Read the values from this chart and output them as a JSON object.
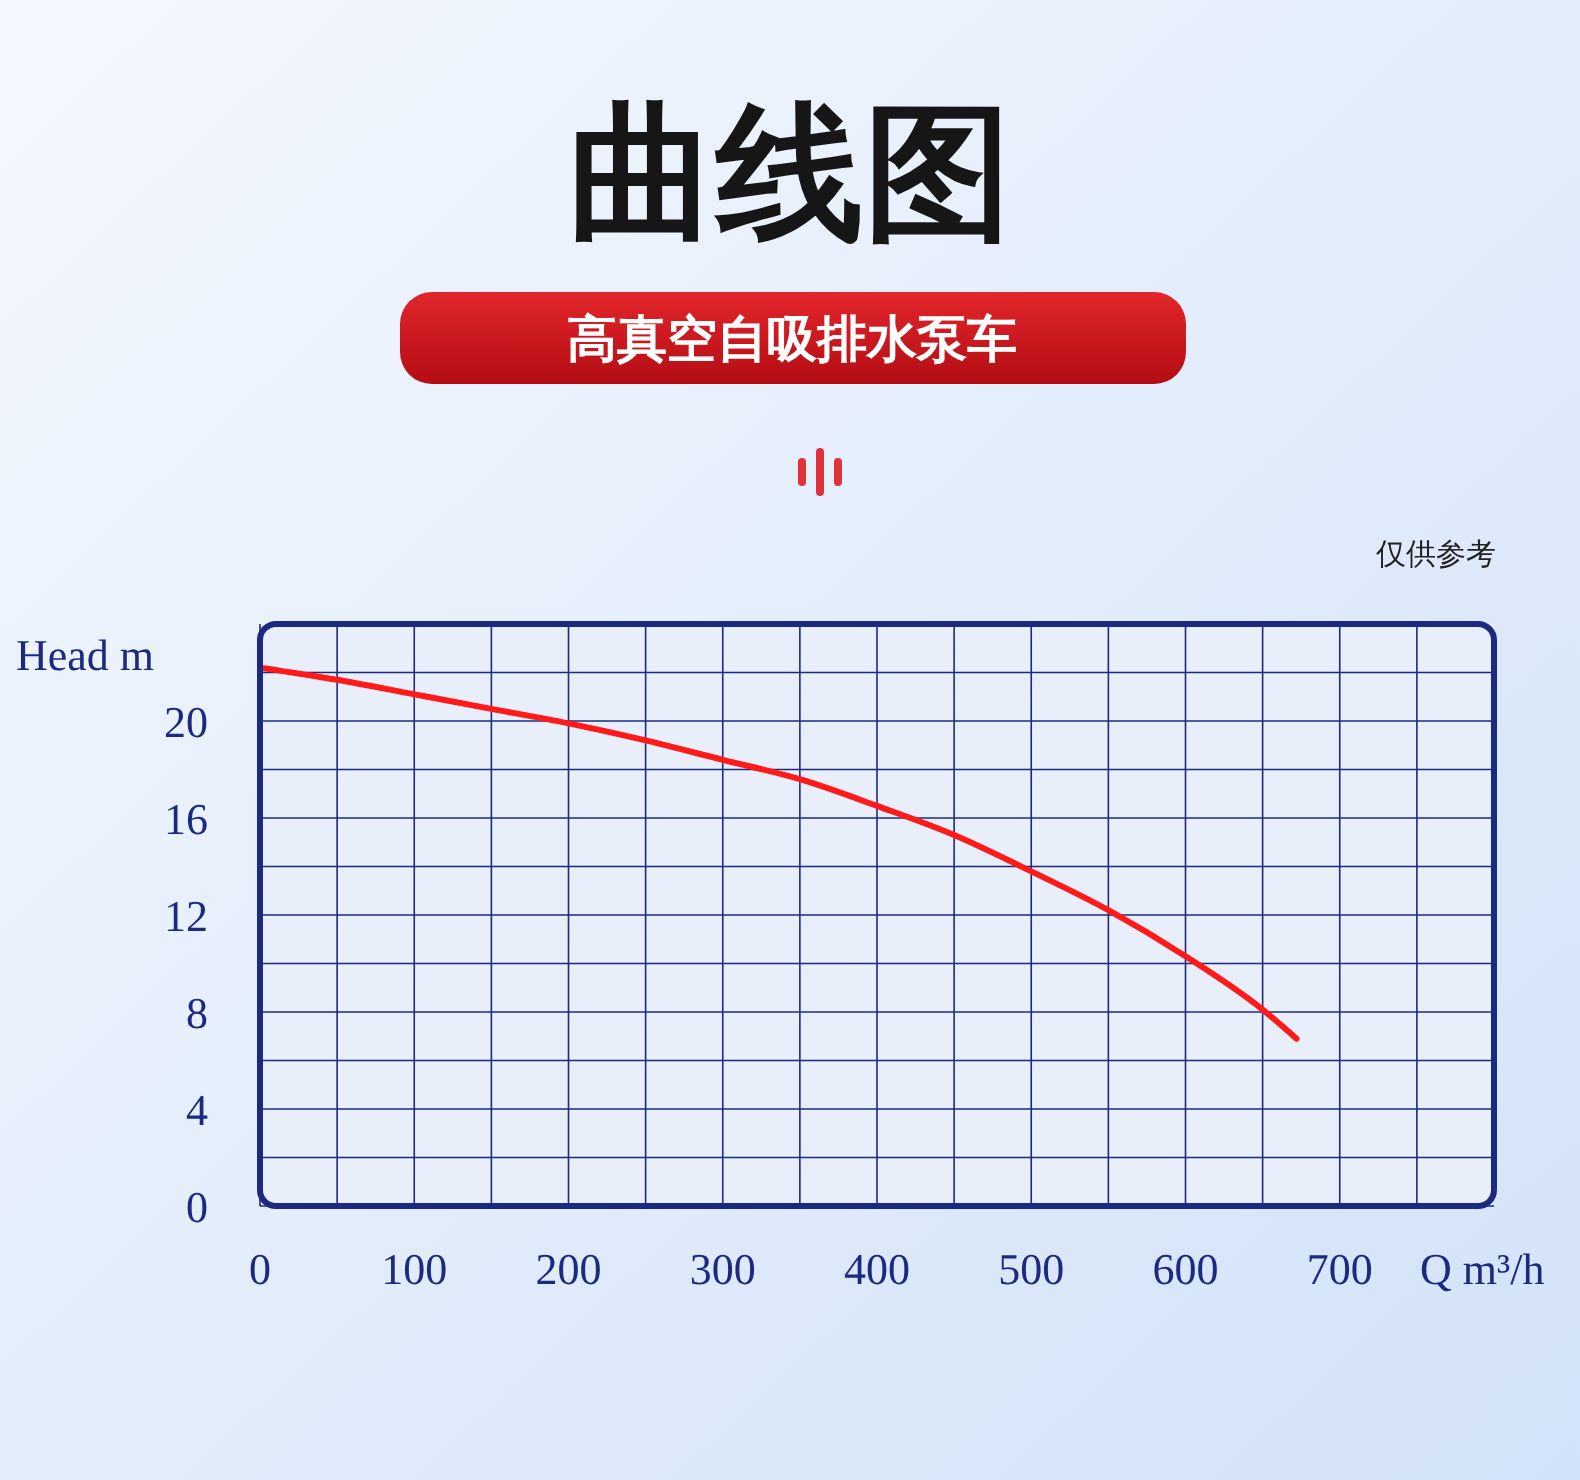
{
  "chart_data": {
    "type": "line",
    "title": "曲线图",
    "subtitle": "高真空自吸排水泵车",
    "annotations": [
      "仅供参考"
    ],
    "xlabel": "Q m³/h",
    "ylabel": "Head m",
    "x": [
      0,
      50,
      100,
      150,
      200,
      250,
      300,
      350,
      400,
      450,
      500,
      550,
      600,
      650,
      672
    ],
    "series": [
      {
        "color": "#ff1a1a",
        "values": [
          22.2,
          21.7,
          21.1,
          20.5,
          19.9,
          19.2,
          18.4,
          17.6,
          16.5,
          15.3,
          13.8,
          12.2,
          10.3,
          8.1,
          6.9
        ]
      }
    ],
    "xlim": [
      0,
      800
    ],
    "ylim": [
      0,
      24
    ],
    "xticks": [
      0,
      {
        "value": 50,
        "label": null
      },
      100,
      {
        "value": 150,
        "label": null
      },
      200,
      {
        "value": 250,
        "label": null
      },
      300,
      {
        "value": 350,
        "label": null
      },
      400,
      {
        "value": 450,
        "label": null
      },
      500,
      {
        "value": 550,
        "label": null
      },
      600,
      {
        "value": 650,
        "label": null
      },
      700,
      {
        "value": 750,
        "label": null
      }
    ],
    "yticks": [
      0,
      {
        "value": 2,
        "label": null
      },
      4,
      {
        "value": 6,
        "label": null
      },
      8,
      {
        "value": 10,
        "label": null
      },
      12,
      {
        "value": 14,
        "label": null
      },
      16,
      {
        "value": 18,
        "label": null
      },
      20,
      {
        "value": 22,
        "label": null
      }
    ],
    "grid": true,
    "marker": "none",
    "line_style": "solid"
  }
}
